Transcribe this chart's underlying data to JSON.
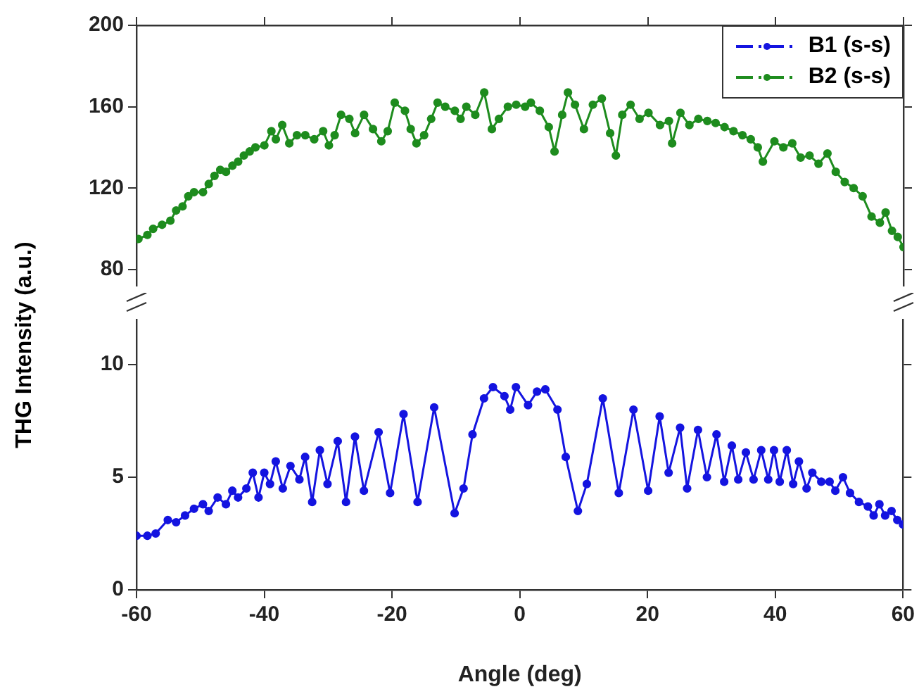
{
  "chart_data": [
    {
      "type": "line",
      "marker": "circle",
      "line_style": "solid",
      "legend": "top right",
      "grid": false,
      "tick_labels": "y",
      "xlim": [
        -60,
        60
      ],
      "xticks": [
        -60,
        -40,
        -20,
        0,
        20,
        40,
        60
      ],
      "ylim": [
        72,
        200
      ],
      "yticks": [
        80,
        120,
        160,
        200
      ],
      "series": [
        {
          "name": "B2 (s-s)",
          "color": "#1e8c1e",
          "x": [
            -59.7,
            -58.3,
            -57.4,
            -56,
            -54.7,
            -53.8,
            -52.8,
            -51.9,
            -51,
            -49.6,
            -48.7,
            -47.8,
            -46.9,
            -46,
            -45,
            -44.1,
            -43.2,
            -42.3,
            -41.4,
            -40,
            -38.9,
            -38.2,
            -37.2,
            -36.1,
            -34.9,
            -33.6,
            -32.2,
            -30.8,
            -29.9,
            -29,
            -28,
            -26.7,
            -25.8,
            -24.4,
            -23,
            -21.7,
            -20.7,
            -19.6,
            -18,
            -17.1,
            -16.2,
            -15,
            -13.9,
            -12.9,
            -11.7,
            -10.2,
            -9.3,
            -8.4,
            -7,
            -5.6,
            -4.4,
            -3.3,
            -1.9,
            -0.6,
            0.8,
            1.7,
            3.1,
            4.5,
            5.4,
            6.6,
            7.5,
            8.6,
            10,
            11.4,
            12.8,
            14.1,
            15,
            16,
            17.3,
            18.7,
            20.1,
            21.9,
            23.3,
            23.8,
            25.1,
            26.5,
            27.9,
            29.3,
            30.6,
            32,
            33.4,
            34.8,
            36.1,
            37.2,
            38,
            39.8,
            41.2,
            42.6,
            43.9,
            45.3,
            46.7,
            48.1,
            49.4,
            50.8,
            52.2,
            53.6,
            55,
            56.3,
            57.2,
            58.2,
            59.1,
            60
          ],
          "values": [
            95,
            97,
            100,
            102,
            104,
            109,
            111,
            116,
            118,
            118,
            122,
            126,
            129,
            128,
            131,
            133,
            136,
            138,
            140,
            141,
            148,
            144,
            151,
            142,
            146,
            146,
            144,
            148,
            141,
            146,
            156,
            154,
            147,
            156,
            149,
            143,
            148,
            162,
            158,
            149,
            142,
            146,
            154,
            162,
            160,
            158,
            154,
            160,
            156,
            167,
            149,
            154,
            160,
            161,
            160,
            162,
            158,
            150,
            138,
            156,
            167,
            161,
            149,
            161,
            164,
            147,
            136,
            156,
            161,
            154,
            157,
            151,
            153,
            142,
            157,
            151,
            154,
            153,
            152,
            150,
            148,
            146,
            144,
            140,
            133,
            143,
            140,
            142,
            135,
            136,
            132,
            137,
            128,
            123,
            120,
            116,
            106,
            103,
            108,
            99,
            96,
            91
          ]
        }
      ]
    },
    {
      "type": "line",
      "marker": "circle",
      "line_style": "solid",
      "grid": false,
      "xlabel": "Angle (deg)",
      "ylabel": "THG Intensity (a.u.)",
      "xlim": [
        -60,
        60
      ],
      "xticks": [
        -60,
        -40,
        -20,
        0,
        20,
        40,
        60
      ],
      "ylim": [
        0,
        12
      ],
      "yticks": [
        0,
        5,
        10
      ],
      "series": [
        {
          "name": "B1 (s-s)",
          "color": "#1414e0",
          "x": [
            -60,
            -58.3,
            -57,
            -55.1,
            -53.8,
            -52.4,
            -51,
            -49.6,
            -48.7,
            -47.3,
            -46,
            -45,
            -44.1,
            -42.8,
            -41.8,
            -40.9,
            -40,
            -39.1,
            -38.2,
            -37.1,
            -35.9,
            -34.5,
            -33.6,
            -32.5,
            -31.3,
            -30.1,
            -28.5,
            -27.2,
            -25.8,
            -24.4,
            -22.1,
            -20.3,
            -18.2,
            -16,
            -13.4,
            -10.2,
            -8.8,
            -7.4,
            -5.6,
            -4.2,
            -2.4,
            -1.5,
            -0.6,
            1.3,
            2.7,
            4,
            5.9,
            7.2,
            9.1,
            10.5,
            13,
            15.5,
            17.8,
            20.1,
            21.9,
            23.3,
            25.1,
            26.2,
            27.9,
            29.3,
            30.8,
            32,
            33.2,
            34.2,
            35.4,
            36.6,
            37.8,
            38.9,
            39.8,
            40.7,
            41.8,
            42.8,
            43.7,
            44.9,
            45.8,
            47.2,
            48.5,
            49.4,
            50.6,
            51.7,
            53.1,
            54.5,
            55.4,
            56.3,
            57.2,
            58.2,
            59.1,
            60
          ],
          "values": [
            2.4,
            2.4,
            2.5,
            3.1,
            3,
            3.3,
            3.6,
            3.8,
            3.5,
            4.1,
            3.8,
            4.4,
            4.1,
            4.5,
            5.2,
            4.1,
            5.2,
            4.7,
            5.7,
            4.5,
            5.5,
            4.9,
            5.9,
            3.9,
            6.2,
            4.7,
            6.6,
            3.9,
            6.8,
            4.4,
            7,
            4.3,
            7.8,
            3.9,
            8.1,
            3.4,
            4.5,
            6.9,
            8.5,
            9,
            8.6,
            8,
            9,
            8.2,
            8.8,
            8.9,
            8,
            5.9,
            3.5,
            4.7,
            8.5,
            4.3,
            8,
            4.4,
            7.7,
            5.2,
            7.2,
            4.5,
            7.1,
            5,
            6.9,
            4.8,
            6.4,
            4.9,
            6.1,
            4.9,
            6.2,
            4.9,
            6.2,
            4.8,
            6.2,
            4.7,
            5.7,
            4.5,
            5.2,
            4.8,
            4.8,
            4.4,
            5,
            4.3,
            3.9,
            3.7,
            3.3,
            3.8,
            3.3,
            3.5,
            3.1,
            2.9
          ]
        }
      ]
    }
  ]
}
